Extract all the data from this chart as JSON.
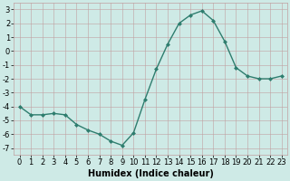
{
  "x": [
    0,
    1,
    2,
    3,
    4,
    5,
    6,
    7,
    8,
    9,
    10,
    11,
    12,
    13,
    14,
    15,
    16,
    17,
    18,
    19,
    20,
    21,
    22,
    23
  ],
  "y": [
    -4.0,
    -4.6,
    -4.6,
    -4.5,
    -4.6,
    -5.3,
    -5.7,
    -6.0,
    -6.5,
    -6.8,
    -5.9,
    -3.5,
    -1.3,
    0.5,
    2.0,
    2.6,
    2.9,
    2.2,
    0.7,
    -1.2,
    -1.8,
    -2.0,
    -2.0,
    -1.8
  ],
  "line_color": "#2e7d6e",
  "marker": "D",
  "marker_size": 2.0,
  "bg_color": "#ceeae6",
  "grid_color": "#c0a0a0",
  "xlabel": "Humidex (Indice chaleur)",
  "xlabel_fontsize": 7,
  "xlim": [
    -0.5,
    23.5
  ],
  "ylim": [
    -7.5,
    3.5
  ],
  "yticks": [
    -7,
    -6,
    -5,
    -4,
    -3,
    -2,
    -1,
    0,
    1,
    2,
    3
  ],
  "xticks": [
    0,
    1,
    2,
    3,
    4,
    5,
    6,
    7,
    8,
    9,
    10,
    11,
    12,
    13,
    14,
    15,
    16,
    17,
    18,
    19,
    20,
    21,
    22,
    23
  ],
  "tick_fontsize": 6,
  "line_width": 1.0
}
